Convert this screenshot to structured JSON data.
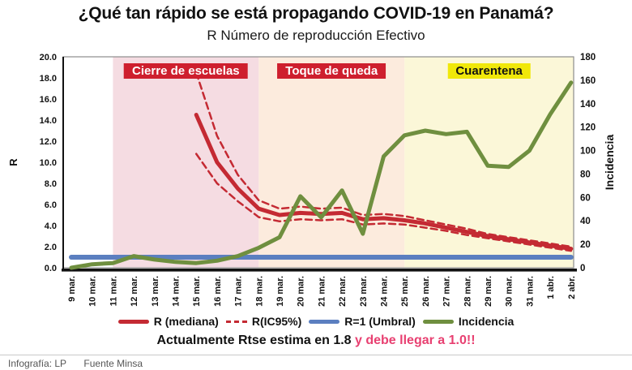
{
  "title": "¿Qué tan rápido se está propagando COVID-19 en Panamá?",
  "subtitle": "R Número de reproducción Efectivo",
  "annotation": {
    "main": "Actualmente Rtse estima en 1.8 ",
    "highlight": "y debe llegar a 1.0!!",
    "highlight_color": "#e84071"
  },
  "footer": {
    "credit": "Infografía: LP",
    "source": "Fuente Minsa"
  },
  "chart_data": {
    "type": "line",
    "title": "R Número de reproducción Efectivo",
    "x": [
      "9 mar.",
      "10 mar.",
      "11 mar.",
      "12 mar.",
      "13 mar.",
      "14 mar.",
      "15 mar.",
      "16 mar.",
      "17 mar.",
      "18 mar.",
      "19 mar.",
      "20 mar.",
      "21 mar.",
      "22 mar.",
      "23 mar.",
      "24 mar.",
      "25 mar.",
      "26 mar.",
      "27 mar.",
      "28 mar.",
      "29 mar.",
      "30 mar.",
      "31 mar.",
      "1 abr.",
      "2 abr."
    ],
    "left_axis": {
      "label": "R",
      "min": 0,
      "max": 20,
      "step": 2,
      "decimals": 1
    },
    "right_axis": {
      "label": "Incidencia",
      "min": 0,
      "max": 180,
      "step": 20
    },
    "grid": false,
    "legend_position": "bottom",
    "regions": [
      {
        "label": "Cierre de escuelas",
        "from": 2,
        "to": 9,
        "fill": "#f5dce2",
        "label_bg": "#ce1f2e",
        "label_color": "#ffffff"
      },
      {
        "label": "Toque de queda",
        "from": 9,
        "to": 16,
        "fill": "#fcebdd",
        "label_bg": "#ce1f2e",
        "label_color": "#ffffff"
      },
      {
        "label": "Cuarentena",
        "from": 16,
        "to": 24,
        "fill": "#fbf7d8",
        "label_bg": "#f0e80a",
        "label_color": "#111111"
      }
    ],
    "series": [
      {
        "name": "R=1 (Umbral)",
        "axis": "left",
        "color": "#5b7fc0",
        "style": "solid",
        "width": 6,
        "values": [
          1,
          1,
          1,
          1,
          1,
          1,
          1,
          1,
          1,
          1,
          1,
          1,
          1,
          1,
          1,
          1,
          1,
          1,
          1,
          1,
          1,
          1,
          1,
          1,
          1
        ]
      },
      {
        "name": "R(IC95%) superior",
        "axis": "left",
        "color": "#c42a33",
        "style": "dashed",
        "width": 2.5,
        "values": [
          null,
          null,
          null,
          null,
          null,
          null,
          18.5,
          12.5,
          8.8,
          6.4,
          5.6,
          5.8,
          5.6,
          5.7,
          5.0,
          5.1,
          4.9,
          4.5,
          4.1,
          3.7,
          3.2,
          2.9,
          2.6,
          2.3,
          2.0
        ]
      },
      {
        "name": "R(IC95%) inferior",
        "axis": "left",
        "color": "#c42a33",
        "style": "dashed",
        "width": 2.5,
        "values": [
          null,
          null,
          null,
          null,
          null,
          null,
          10.8,
          8.0,
          6.3,
          4.8,
          4.4,
          4.6,
          4.5,
          4.6,
          4.1,
          4.2,
          4.1,
          3.8,
          3.5,
          3.1,
          2.8,
          2.5,
          2.2,
          1.9,
          1.6
        ]
      },
      {
        "name": "R (mediana)",
        "axis": "left",
        "color": "#c42a33",
        "style": "solid",
        "width": 5,
        "values": [
          null,
          null,
          null,
          null,
          null,
          null,
          14.5,
          10.0,
          7.5,
          5.6,
          5.0,
          5.2,
          5.1,
          5.2,
          4.6,
          4.7,
          4.5,
          4.2,
          3.8,
          3.4,
          3.0,
          2.7,
          2.4,
          2.1,
          1.8
        ]
      },
      {
        "name": "Incidencia",
        "axis": "right",
        "color": "#6f8f3f",
        "style": "solid",
        "width": 5,
        "values": [
          0,
          3,
          4,
          10,
          7,
          5,
          4,
          6,
          10,
          17,
          26,
          61,
          43,
          66,
          29,
          95,
          113,
          117,
          114,
          116,
          87,
          86,
          100,
          131,
          158
        ]
      }
    ],
    "legend": [
      {
        "label": "R (mediana)",
        "color": "#c42a33",
        "style": "solid"
      },
      {
        "label": "R(IC95%)",
        "color": "#c42a33",
        "style": "dashed"
      },
      {
        "label": "R=1 (Umbral)",
        "color": "#5b7fc0",
        "style": "solid"
      },
      {
        "label": "Incidencia",
        "color": "#6f8f3f",
        "style": "solid"
      }
    ]
  }
}
